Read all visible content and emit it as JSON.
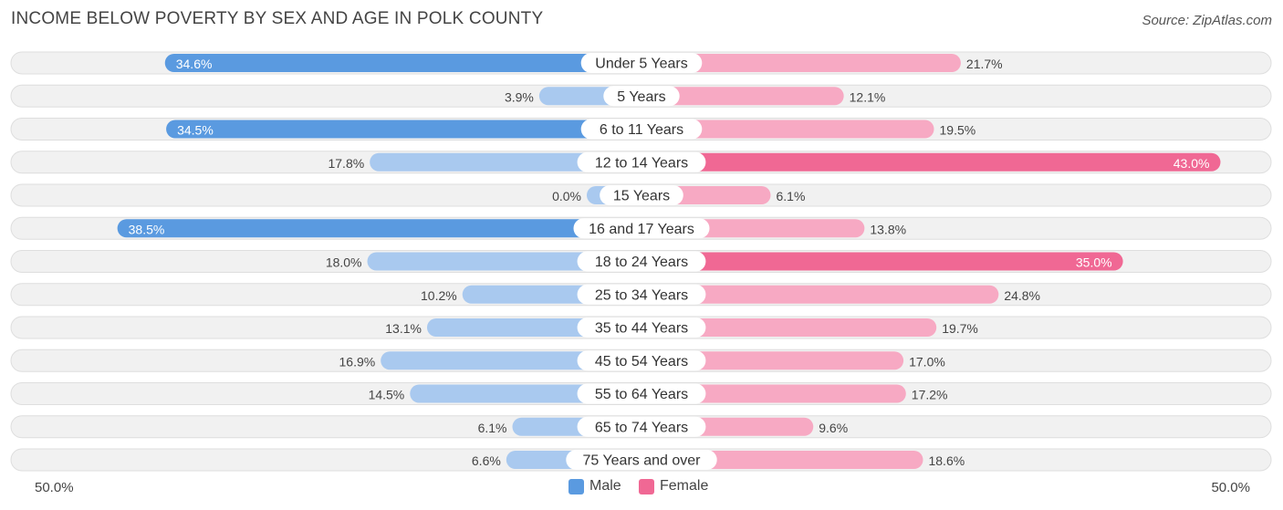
{
  "title": "INCOME BELOW POVERTY BY SEX AND AGE IN POLK COUNTY",
  "source": "Source: ZipAtlas.com",
  "axis": {
    "left_label": "50.0%",
    "right_label": "50.0%"
  },
  "legend": {
    "male_label": "Male",
    "female_label": "Female"
  },
  "colors": {
    "male_strong": "#5a9ae0",
    "male_light": "#a9c9ef",
    "female_strong": "#f06894",
    "female_light": "#f7a9c3",
    "track": "#f1f1f1",
    "track_border": "#dedede"
  },
  "chart_data": {
    "type": "bar",
    "orientation": "horizontal-diverging",
    "categories": [
      "Under 5 Years",
      "5 Years",
      "6 to 11 Years",
      "12 to 14 Years",
      "15 Years",
      "16 and 17 Years",
      "18 to 24 Years",
      "25 to 34 Years",
      "35 to 44 Years",
      "45 to 54 Years",
      "55 to 64 Years",
      "65 to 74 Years",
      "75 Years and over"
    ],
    "series": [
      {
        "name": "Male",
        "values": [
          34.6,
          3.9,
          34.5,
          17.8,
          0.0,
          38.5,
          18.0,
          10.2,
          13.1,
          16.9,
          14.5,
          6.1,
          6.6
        ],
        "labels": [
          "34.6%",
          "3.9%",
          "34.5%",
          "17.8%",
          "0.0%",
          "38.5%",
          "18.0%",
          "10.2%",
          "13.1%",
          "16.9%",
          "14.5%",
          "6.1%",
          "6.6%"
        ]
      },
      {
        "name": "Female",
        "values": [
          21.7,
          12.1,
          19.5,
          43.0,
          6.1,
          13.8,
          35.0,
          24.8,
          19.7,
          17.0,
          17.2,
          9.6,
          18.6
        ],
        "labels": [
          "21.7%",
          "12.1%",
          "19.5%",
          "43.0%",
          "6.1%",
          "13.8%",
          "35.0%",
          "24.8%",
          "19.7%",
          "17.0%",
          "17.2%",
          "9.6%",
          "18.6%"
        ]
      }
    ],
    "xlim": [
      -50,
      50
    ],
    "legend_position": "bottom-center"
  }
}
